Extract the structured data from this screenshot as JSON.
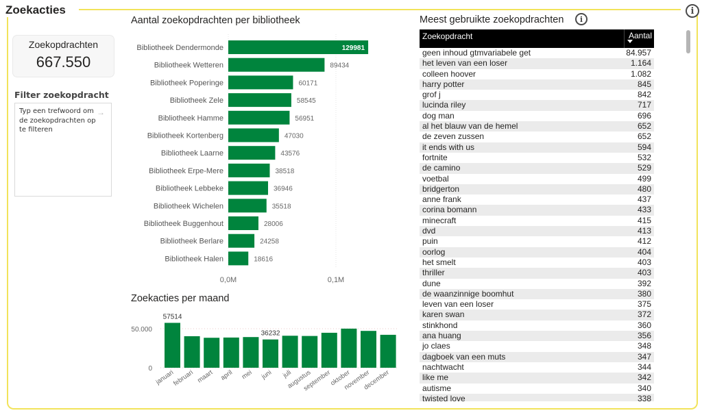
{
  "section_title": "Zoekacties",
  "kpi": {
    "label": "Zoekopdrachten",
    "value": "667.550"
  },
  "filter": {
    "title": "Filter zoekopdracht",
    "placeholder": "Typ een trefwoord om de zoekopdrachten op te filteren"
  },
  "colors": {
    "accent_frame": "#f2e35a",
    "bar_green": "#00843d",
    "header_black": "#000000"
  },
  "chart_data": [
    {
      "type": "bar",
      "orientation": "horizontal",
      "title": "Aantal zoekopdrachten per bibliotheek",
      "categories": [
        "Bibliotheek Dendermonde",
        "Bibliotheek Wetteren",
        "Bibliotheek Poperinge",
        "Bibliotheek Zele",
        "Bibliotheek Hamme",
        "Bibliotheek Kortenberg",
        "Bibliotheek Laarne",
        "Bibliotheek Erpe-Mere",
        "Bibliotheek Lebbeke",
        "Bibliotheek Wichelen",
        "Bibliotheek Buggenhout",
        "Bibliotheek Berlare",
        "Bibliotheek Halen"
      ],
      "values": [
        129981,
        89434,
        60171,
        58545,
        56951,
        47030,
        43576,
        38518,
        36946,
        35518,
        28006,
        24258,
        18616
      ],
      "labels": [
        "129981",
        "89434",
        "60171",
        "58545",
        "56951",
        "47030",
        "43576",
        "38518",
        "36946",
        "35518",
        "28006",
        "24258",
        "18616"
      ],
      "xticks": [
        {
          "value": 0,
          "label": "0,0M"
        },
        {
          "value": 100000,
          "label": "0,1M"
        }
      ],
      "xlim": [
        0,
        150000
      ],
      "grid": true
    },
    {
      "type": "bar",
      "title": "Zoekacties per maand",
      "categories": [
        "januari",
        "februari",
        "maart",
        "april",
        "mei",
        "juni",
        "juli",
        "augustus",
        "september",
        "oktober",
        "november",
        "december"
      ],
      "values": [
        57514,
        40400,
        38400,
        38700,
        39300,
        36232,
        41000,
        40700,
        44800,
        50100,
        47200,
        42200
      ],
      "data_labels": [
        {
          "index": 0,
          "label": "57514"
        },
        {
          "index": 5,
          "label": "36232"
        }
      ],
      "yticks": [
        {
          "value": 0,
          "label": "0"
        },
        {
          "value": 50000,
          "label": "50.000"
        }
      ],
      "ylim": [
        0,
        60000
      ],
      "grid": true
    }
  ],
  "table": {
    "title": "Meest gebruikte zoekopdrachten",
    "columns": {
      "query": "Zoekopdracht",
      "count": "Aantal"
    },
    "rows": [
      {
        "q": "geen inhoud gtmvariabele get",
        "n": "84.957"
      },
      {
        "q": "het leven van een loser",
        "n": "1.164"
      },
      {
        "q": "colleen hoover",
        "n": "1.082"
      },
      {
        "q": "harry potter",
        "n": "845"
      },
      {
        "q": "grof j",
        "n": "842"
      },
      {
        "q": "lucinda riley",
        "n": "717"
      },
      {
        "q": "dog man",
        "n": "696"
      },
      {
        "q": "al het blauw van de hemel",
        "n": "652"
      },
      {
        "q": "de zeven zussen",
        "n": "652"
      },
      {
        "q": "it ends with us",
        "n": "594"
      },
      {
        "q": "fortnite",
        "n": "532"
      },
      {
        "q": "de camino",
        "n": "529"
      },
      {
        "q": "voetbal",
        "n": "499"
      },
      {
        "q": "bridgerton",
        "n": "480"
      },
      {
        "q": "anne frank",
        "n": "437"
      },
      {
        "q": "corina bomann",
        "n": "433"
      },
      {
        "q": "minecraft",
        "n": "415"
      },
      {
        "q": "dvd",
        "n": "413"
      },
      {
        "q": "puin",
        "n": "412"
      },
      {
        "q": "oorlog",
        "n": "404"
      },
      {
        "q": "het smelt",
        "n": "403"
      },
      {
        "q": "thriller",
        "n": "403"
      },
      {
        "q": "dune",
        "n": "392"
      },
      {
        "q": "de waanzinnige boomhut",
        "n": "380"
      },
      {
        "q": "leven van een loser",
        "n": "375"
      },
      {
        "q": "karen swan",
        "n": "372"
      },
      {
        "q": "stinkhond",
        "n": "360"
      },
      {
        "q": "ana huang",
        "n": "356"
      },
      {
        "q": "jo claes",
        "n": "348"
      },
      {
        "q": "dagboek van een muts",
        "n": "347"
      },
      {
        "q": "nachtwacht",
        "n": "344"
      },
      {
        "q": "like me",
        "n": "342"
      },
      {
        "q": "autisme",
        "n": "340"
      },
      {
        "q": "twisted love",
        "n": "338"
      }
    ]
  },
  "icons": {
    "info": "i"
  }
}
